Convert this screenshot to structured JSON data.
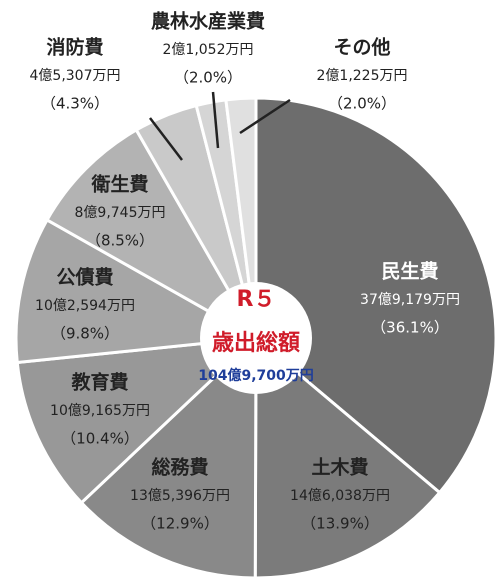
{
  "chart_data": {
    "type": "pie",
    "center_title": "R５",
    "center_subtitle": "歳出総額",
    "center_total": "104億9,700万円",
    "categories": [
      "民生費",
      "土木費",
      "総務費",
      "教育費",
      "公債費",
      "衛生費",
      "消防費",
      "農林水産業費",
      "その他"
    ],
    "amounts": [
      "37億9,179万円",
      "14億6,038万円",
      "13億5,396万円",
      "10億9,165万円",
      "10億2,594万円",
      "8億9,745万円",
      "4億5,307万円",
      "2億1,052万円",
      "2億1,225万円"
    ],
    "values": [
      36.1,
      13.9,
      12.9,
      10.4,
      9.8,
      8.5,
      4.3,
      2.0,
      2.0
    ],
    "value_labels": [
      "（36.1%）",
      "（13.9%）",
      "（12.9%）",
      "（10.4%）",
      "（9.8%）",
      "（8.5%）",
      "（4.3%）",
      "（2.0%）",
      "（2.0%）"
    ],
    "colors": [
      "#6d6d6d",
      "#7b7b7b",
      "#898989",
      "#989898",
      "#a6a6a6",
      "#b3b3b3",
      "#c9c9c9",
      "#d5d5d5",
      "#e0e0e0"
    ]
  }
}
